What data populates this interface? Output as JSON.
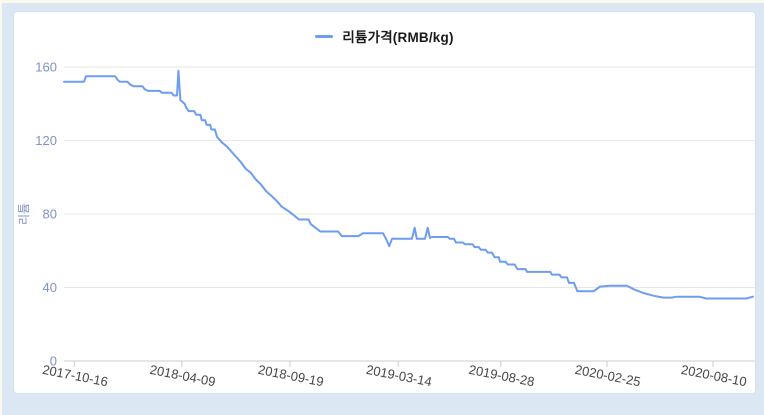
{
  "colors": {
    "page_background": "#fbf8ef",
    "frame_background": "#dce7f4",
    "panel_background": "#ffffff",
    "series_line": "#6e9cf1",
    "gridline": "#e7e7e7",
    "axis_line": "#cccccc",
    "y_label": "#8191c8",
    "x_label": "#474747",
    "legend_text": "#1b1b1b"
  },
  "chart_data": {
    "type": "line",
    "title": "",
    "legend": {
      "position": "top",
      "items": [
        {
          "label": "리튬가격(RMB/kg)",
          "color": "#6e9cf1"
        }
      ]
    },
    "y_axis": {
      "title": "리튬",
      "min": 0,
      "max": 160,
      "ticks": [
        0,
        40,
        80,
        120,
        160
      ],
      "grid_values": [
        40,
        80,
        120,
        160
      ],
      "grid": "horizontal only"
    },
    "x_axis": {
      "unit": "date",
      "range_start": "2017-10-16",
      "range_end": "2020-08-10",
      "label_rotation_deg": 11,
      "ticks": [
        {
          "label": "2017-10-16",
          "pos": 15
        },
        {
          "label": "2018-04-09",
          "pos": 171
        },
        {
          "label": "2018-09-19",
          "pos": 328
        },
        {
          "label": "2019-03-14",
          "pos": 485
        },
        {
          "label": "2019-08-28",
          "pos": 634
        },
        {
          "label": "2020-02-25",
          "pos": 788
        },
        {
          "label": "2020-08-10",
          "pos": 942
        }
      ]
    },
    "series": [
      {
        "name": "리튬가격(RMB/kg)",
        "color": "#6e9cf1",
        "x_unit": "per-mille of x-axis span (2017-10-16 → 2020-08-10)",
        "y_unit": "RMB/kg",
        "points": [
          [
            0,
            152
          ],
          [
            29,
            152
          ],
          [
            32,
            155
          ],
          [
            74,
            155
          ],
          [
            78,
            153
          ],
          [
            81,
            152
          ],
          [
            92,
            152
          ],
          [
            96,
            150.5
          ],
          [
            101,
            149.5
          ],
          [
            114,
            149.5
          ],
          [
            117,
            148
          ],
          [
            122,
            147
          ],
          [
            139,
            147
          ],
          [
            142,
            146
          ],
          [
            156,
            146
          ],
          [
            159,
            144.5
          ],
          [
            164,
            144.5
          ],
          [
            166,
            158
          ],
          [
            169,
            142
          ],
          [
            172,
            141
          ],
          [
            175,
            140
          ],
          [
            178,
            137.5
          ],
          [
            181,
            136
          ],
          [
            189,
            136
          ],
          [
            192,
            134
          ],
          [
            198,
            134
          ],
          [
            200,
            131
          ],
          [
            205,
            131
          ],
          [
            207,
            128.5
          ],
          [
            212,
            128.5
          ],
          [
            214,
            126
          ],
          [
            219,
            126
          ],
          [
            222,
            122
          ],
          [
            229,
            119
          ],
          [
            237,
            116.5
          ],
          [
            244,
            113.5
          ],
          [
            250,
            111
          ],
          [
            257,
            108
          ],
          [
            264,
            104.5
          ],
          [
            271,
            102.5
          ],
          [
            278,
            99
          ],
          [
            286,
            96
          ],
          [
            293,
            92.5
          ],
          [
            302,
            89.5
          ],
          [
            309,
            87
          ],
          [
            316,
            84
          ],
          [
            326,
            81.5
          ],
          [
            333,
            79.5
          ],
          [
            341,
            77
          ],
          [
            355,
            77
          ],
          [
            358,
            74.5
          ],
          [
            365,
            72.5
          ],
          [
            372,
            70.5
          ],
          [
            398,
            70.5
          ],
          [
            403,
            68
          ],
          [
            427,
            68
          ],
          [
            434,
            69.5
          ],
          [
            463,
            69.5
          ],
          [
            468,
            66
          ],
          [
            472,
            62.5
          ],
          [
            476,
            66.5
          ],
          [
            505,
            66.5
          ],
          [
            509,
            72.5
          ],
          [
            512,
            66.5
          ],
          [
            524,
            66.5
          ],
          [
            528,
            72.5
          ],
          [
            531,
            67
          ],
          [
            534,
            67.5
          ],
          [
            557,
            67.5
          ],
          [
            560,
            66.5
          ],
          [
            566,
            66.5
          ],
          [
            569,
            64.5
          ],
          [
            579,
            64.5
          ],
          [
            582,
            63.5
          ],
          [
            593,
            63.5
          ],
          [
            596,
            62
          ],
          [
            602,
            62
          ],
          [
            605,
            60.5
          ],
          [
            612,
            60.5
          ],
          [
            615,
            59
          ],
          [
            621,
            59
          ],
          [
            625,
            56.5
          ],
          [
            631,
            56.5
          ],
          [
            633,
            54
          ],
          [
            641,
            54
          ],
          [
            644,
            52.5
          ],
          [
            654,
            52.5
          ],
          [
            658,
            50
          ],
          [
            670,
            50
          ],
          [
            672,
            48.5
          ],
          [
            706,
            48.5
          ],
          [
            708,
            47
          ],
          [
            719,
            47
          ],
          [
            722,
            45.5
          ],
          [
            730,
            45.5
          ],
          [
            733,
            42.5
          ],
          [
            740,
            42.5
          ],
          [
            743,
            40
          ],
          [
            745,
            38
          ],
          [
            769,
            38
          ],
          [
            778,
            40.5
          ],
          [
            792,
            41
          ],
          [
            817,
            41
          ],
          [
            827,
            39
          ],
          [
            841,
            37
          ],
          [
            856,
            35.5
          ],
          [
            870,
            34.5
          ],
          [
            882,
            34.5
          ],
          [
            889,
            35
          ],
          [
            922,
            35
          ],
          [
            932,
            34
          ],
          [
            990,
            34
          ],
          [
            1000,
            35
          ]
        ]
      }
    ]
  }
}
